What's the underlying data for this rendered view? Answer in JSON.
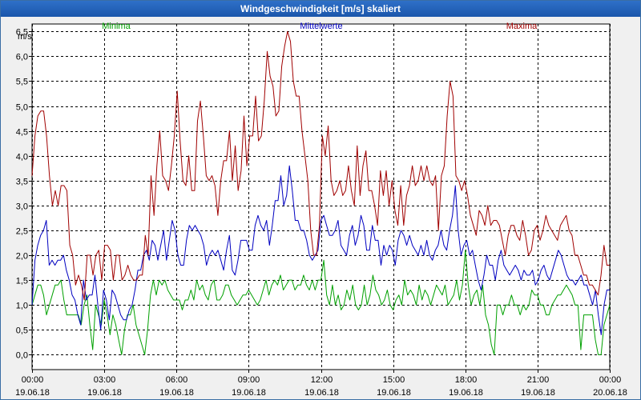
{
  "window": {
    "title": "Windgeschwindigkeit [m/s] skaliert"
  },
  "chart_data": {
    "type": "line",
    "title": "Windgeschwindigkeit [m/s] skaliert",
    "ylabel": "m/s",
    "xlabel": "",
    "ylim": [
      -0.3,
      6.65
    ],
    "xlim": [
      0,
      24
    ],
    "grid": true,
    "legend_position": "top",
    "y_ticks": [
      0.0,
      0.5,
      1.0,
      1.5,
      2.0,
      2.5,
      3.0,
      3.5,
      4.0,
      4.5,
      5.0,
      5.5,
      6.0,
      6.5
    ],
    "y_tick_labels": [
      "0,0",
      "0,5",
      "1,0",
      "1,5",
      "2,0",
      "2,5",
      "3,0",
      "3,5",
      "4,0",
      "4,5",
      "5,0",
      "5,5",
      "6,0",
      "6,5"
    ],
    "x_ticks": [
      0,
      3,
      6,
      9,
      12,
      15,
      18,
      21,
      24
    ],
    "x_tick_times": [
      "00:00",
      "03:00",
      "06:00",
      "09:00",
      "12:00",
      "15:00",
      "18:00",
      "21:00",
      "00:00"
    ],
    "x_tick_dates": [
      "19.06.18",
      "19.06.18",
      "19.06.18",
      "19.06.18",
      "19.06.18",
      "19.06.18",
      "19.06.18",
      "19.06.18",
      "20.06.18"
    ],
    "series": [
      {
        "name": "Minima",
        "color": "#00a000",
        "values": [
          1.0,
          1.2,
          1.4,
          1.4,
          1.2,
          0.8,
          1.0,
          1.2,
          1.4,
          1.4,
          1.5,
          1.1,
          0.8,
          0.8,
          0.8,
          0.8,
          0.8,
          0.6,
          1.0,
          1.2,
          0.6,
          0.1,
          1.0,
          0.8,
          0.6,
          1.1,
          0.8,
          0.4,
          0.8,
          0.6,
          0.3,
          0.0,
          0.5,
          0.8,
          0.8,
          1.0,
          0.6,
          0.4,
          0.2,
          0.0,
          0.5,
          1.2,
          1.5,
          1.2,
          1.5,
          1.4,
          1.5,
          1.3,
          1.2,
          1.1,
          1.1,
          1.1,
          0.9,
          1.1,
          1.1,
          1.3,
          1.1,
          1.5,
          1.3,
          1.4,
          1.2,
          1.1,
          1.4,
          1.5,
          1.1,
          1.1,
          1.2,
          1.4,
          1.4,
          1.2,
          1.1,
          1.0,
          1.1,
          1.2,
          1.2,
          1.3,
          1.2,
          1.1,
          1.0,
          1.1,
          1.3,
          1.5,
          1.2,
          1.4,
          1.5,
          1.4,
          1.6,
          1.3,
          1.4,
          1.5,
          1.5,
          1.3,
          1.4,
          1.4,
          1.6,
          1.4,
          1.3,
          1.5,
          1.3,
          1.5,
          1.5,
          1.9,
          1.2,
          1.0,
          1.4,
          1.0,
          1.2,
          0.9,
          1.0,
          1.3,
          1.1,
          1.4,
          1.0,
          0.9,
          1.0,
          1.4,
          1.0,
          1.2,
          1.6,
          1.3,
          1.2,
          1.0,
          1.1,
          1.3,
          1.0,
          0.9,
          1.1,
          1.2,
          1.0,
          1.5,
          1.2,
          1.3,
          1.2,
          1.0,
          1.4,
          1.1,
          1.3,
          1.2,
          1.0,
          1.2,
          1.4,
          1.3,
          1.2,
          1.4,
          1.0,
          1.1,
          1.2,
          1.5,
          1.1,
          1.4,
          2.1,
          1.4,
          1.0,
          1.2,
          1.3,
          1.0,
          1.4,
          0.8,
          0.6,
          0.2,
          0.0,
          1.0,
          1.0,
          0.8,
          1.0,
          1.0,
          1.2,
          1.0,
          1.0,
          0.8,
          1.0,
          0.9,
          1.0,
          1.3,
          1.2,
          1.2,
          1.0,
          1.0,
          0.8,
          0.8,
          1.0,
          1.1,
          1.2,
          1.2,
          1.3,
          1.4,
          1.3,
          1.2,
          1.0,
          1.0,
          0.1,
          0.8,
          0.8,
          0.8,
          0.8,
          0.3,
          0.0,
          0.0,
          0.6,
          0.8,
          1.0
        ]
      },
      {
        "name": "Mittelwerte",
        "color": "#0000c0",
        "values": [
          1.0,
          1.9,
          2.2,
          2.4,
          2.5,
          2.7,
          1.8,
          1.9,
          1.8,
          1.9,
          1.9,
          2.0,
          1.7,
          1.5,
          1.2,
          1.1,
          0.8,
          0.6,
          1.5,
          1.1,
          1.2,
          1.2,
          1.6,
          1.0,
          0.5,
          1.3,
          1.1,
          0.7,
          1.3,
          1.2,
          1.0,
          0.8,
          0.7,
          0.7,
          0.9,
          1.0,
          1.3,
          1.7,
          1.7,
          2.0,
          2.1,
          1.9,
          2.3,
          2.2,
          1.9,
          2.2,
          2.5,
          1.9,
          2.3,
          2.7,
          2.5,
          2.0,
          1.8,
          1.8,
          2.3,
          2.6,
          2.5,
          2.6,
          2.5,
          2.4,
          2.2,
          1.8,
          2.0,
          2.1,
          2.0,
          2.1,
          1.9,
          1.7,
          2.1,
          2.4,
          1.7,
          1.6,
          1.9,
          2.3,
          2.3,
          2.3,
          2.1,
          2.1,
          2.6,
          2.8,
          2.6,
          2.5,
          2.7,
          2.2,
          2.6,
          3.1,
          3.1,
          3.6,
          3.0,
          3.2,
          3.8,
          3.3,
          2.7,
          2.7,
          2.5,
          2.5,
          2.3,
          2.0,
          1.9,
          2.0,
          2.1,
          2.7,
          2.8,
          2.6,
          2.4,
          2.4,
          2.5,
          2.7,
          2.2,
          2.1,
          2.0,
          2.4,
          2.6,
          2.2,
          2.4,
          2.8,
          2.6,
          2.1,
          2.1,
          2.6,
          2.3,
          2.3,
          1.8,
          2.2,
          2.0,
          2.2,
          2.1,
          1.8,
          2.3,
          2.5,
          2.4,
          2.2,
          2.4,
          2.2,
          2.1,
          2.0,
          2.2,
          2.0,
          2.3,
          2.0,
          1.9,
          2.1,
          2.2,
          2.5,
          2.2,
          2.1,
          2.5,
          2.8,
          3.4,
          2.5,
          2.0,
          2.2,
          2.3,
          2.0,
          2.1,
          1.8,
          1.5,
          1.3,
          1.6,
          2.0,
          1.8,
          1.8,
          1.5,
          1.9,
          2.1,
          1.8,
          1.7,
          1.6,
          1.7,
          1.8,
          1.7,
          1.5,
          1.7,
          1.6,
          1.6,
          1.7,
          1.4,
          1.5,
          1.7,
          1.8,
          1.6,
          1.5,
          1.7,
          1.9,
          2.1,
          2.0,
          1.8,
          1.6,
          1.5,
          1.5,
          1.4,
          1.5,
          1.6,
          1.4,
          1.4,
          1.2,
          1.0,
          1.3,
          0.8,
          0.4,
          1.0,
          1.3,
          1.3
        ]
      },
      {
        "name": "Maxima",
        "color": "#a00000",
        "values": [
          3.6,
          4.4,
          4.8,
          4.9,
          4.9,
          4.4,
          3.6,
          3.0,
          3.3,
          3.0,
          3.4,
          3.4,
          3.3,
          2.2,
          2.0,
          1.4,
          1.6,
          1.4,
          1.1,
          2.0,
          2.0,
          1.6,
          2.0,
          2.1,
          1.5,
          2.2,
          2.2,
          2.1,
          1.5,
          2.0,
          2.0,
          1.5,
          1.6,
          1.8,
          1.6,
          1.5,
          1.5,
          1.6,
          1.6,
          2.4,
          2.0,
          3.6,
          2.8,
          3.8,
          4.5,
          3.6,
          3.5,
          3.3,
          3.8,
          4.4,
          5.3,
          4.3,
          3.5,
          3.4,
          4.0,
          3.3,
          3.3,
          4.7,
          5.1,
          4.4,
          3.6,
          3.5,
          3.6,
          3.4,
          2.8,
          3.5,
          3.9,
          3.9,
          4.5,
          3.5,
          4.2,
          3.3,
          3.7,
          4.8,
          3.8,
          4.4,
          4.4,
          5.2,
          4.3,
          4.4,
          5.1,
          6.1,
          5.6,
          5.4,
          4.8,
          4.9,
          5.8,
          6.2,
          6.5,
          6.3,
          5.5,
          5.2,
          5.2,
          4.5,
          4.0,
          3.5,
          2.5,
          2.0,
          2.0,
          2.6,
          4.4,
          4.0,
          4.6,
          3.5,
          3.2,
          3.3,
          3.5,
          3.2,
          3.3,
          3.8,
          3.3,
          3.0,
          4.2,
          3.2,
          3.8,
          4.1,
          3.3,
          3.3,
          3.0,
          2.6,
          3.7,
          3.2,
          3.7,
          3.0,
          3.5,
          2.9,
          2.6,
          3.4,
          2.6,
          3.2,
          3.4,
          3.8,
          3.4,
          3.5,
          3.8,
          3.5,
          3.8,
          3.5,
          3.4,
          3.6,
          2.5,
          3.6,
          3.8,
          4.8,
          5.5,
          5.2,
          3.6,
          3.5,
          3.3,
          3.5,
          3.2,
          2.8,
          2.6,
          2.4,
          2.9,
          2.8,
          2.6,
          3.0,
          2.6,
          2.7,
          2.7,
          2.6,
          2.3,
          2.0,
          2.4,
          2.6,
          2.6,
          2.4,
          2.3,
          2.7,
          2.4,
          2.0,
          2.1,
          2.5,
          2.6,
          2.3,
          2.5,
          2.8,
          2.6,
          2.5,
          2.4,
          2.3,
          2.6,
          2.7,
          2.8,
          2.5,
          2.4,
          2.0,
          2.0,
          1.8,
          1.6,
          1.6,
          1.4,
          1.4,
          1.3,
          1.2,
          1.6,
          2.2,
          1.8,
          1.8
        ]
      }
    ]
  }
}
